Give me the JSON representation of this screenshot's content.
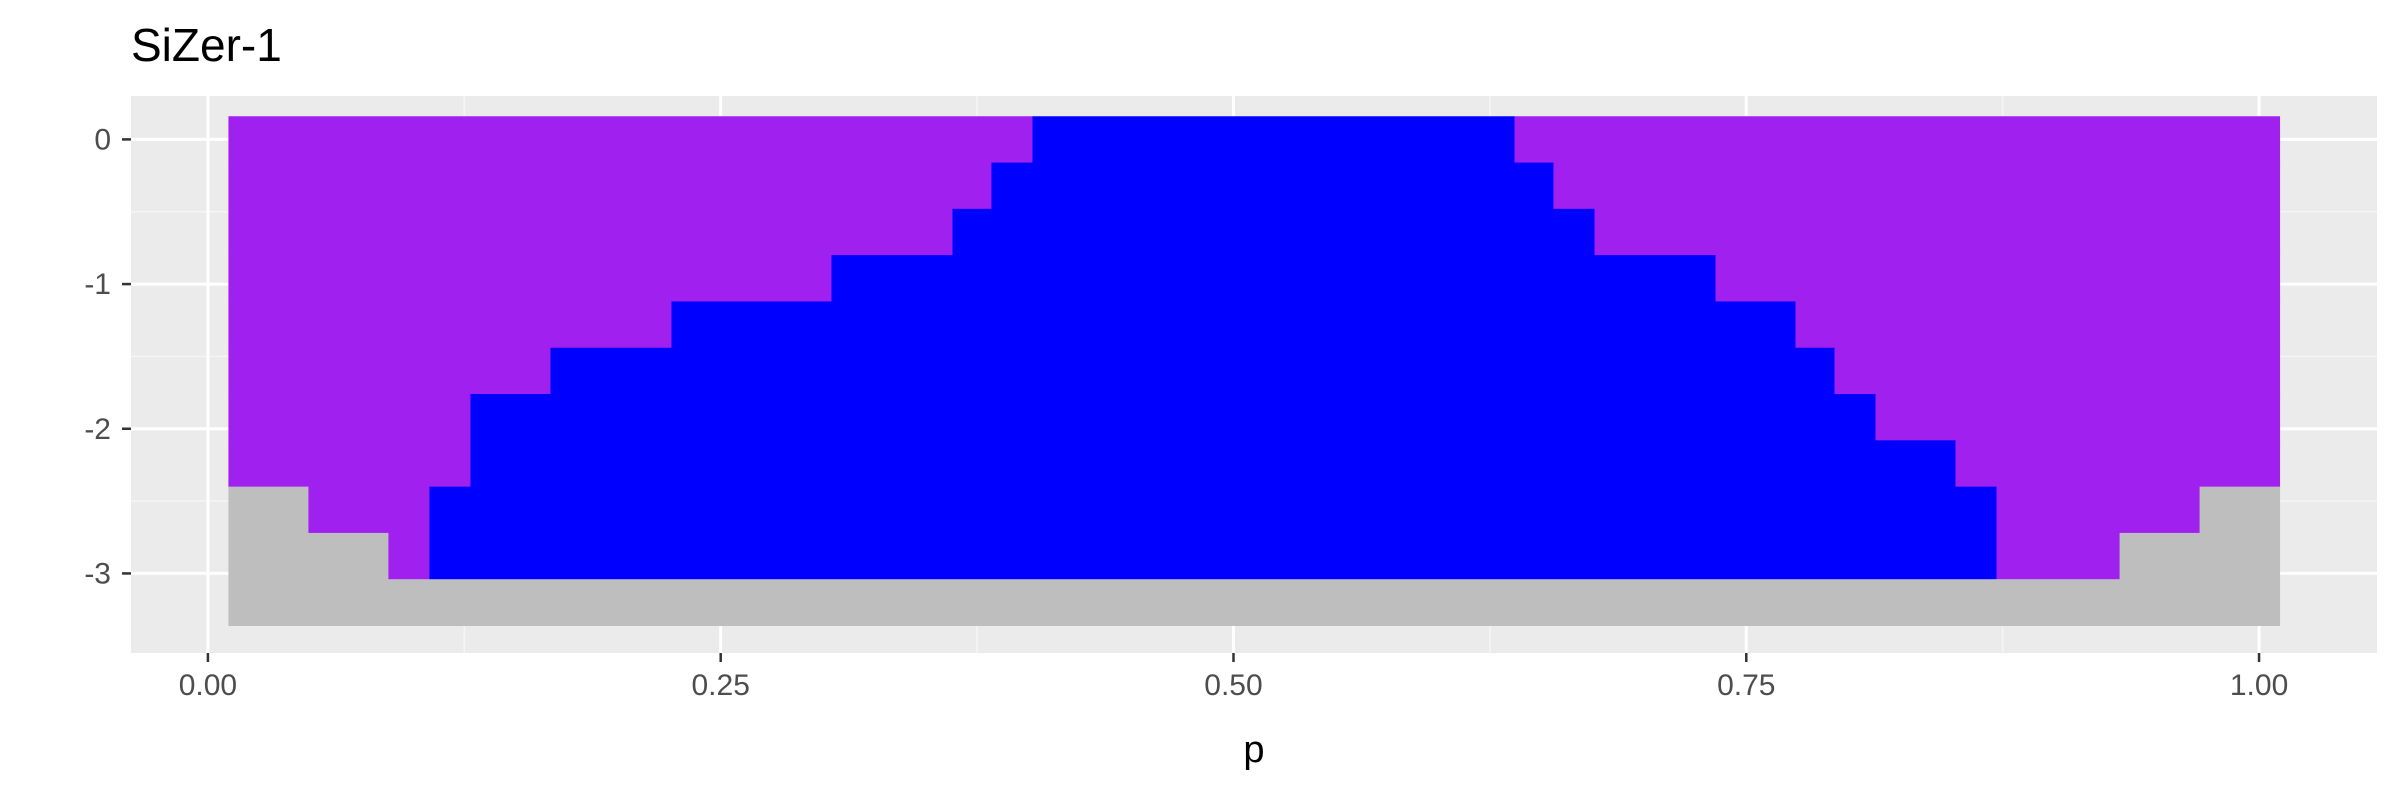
{
  "chart_data": {
    "type": "heatmap",
    "title": "SiZer-1",
    "xlabel": "p",
    "ylabel": "",
    "xlim": [
      -0.0375,
      1.0575
    ],
    "ylim": [
      -3.55,
      0.3
    ],
    "x_ticks": [
      0.0,
      0.25,
      0.5,
      0.75,
      1.0
    ],
    "x_tick_labels": [
      "0.00",
      "0.25",
      "0.50",
      "0.75",
      "1.00"
    ],
    "y_ticks": [
      0,
      -1,
      -2,
      -3
    ],
    "y_tick_labels": [
      "0",
      "-1",
      "-2",
      "-3"
    ],
    "grid": true,
    "legend": "none",
    "colors": {
      "increasing": "#0000ff",
      "not_significant": "#a020f0",
      "insufficient_data": "#bebebe",
      "panel_background": "#ebebeb",
      "grid_major": "#ffffff",
      "grid_minor": "#f5f5f5"
    },
    "x_extent": [
      0.01,
      1.01
    ],
    "bandwidth_rows": [
      {
        "y": 0.0,
        "y_bottom": -0.16,
        "y_top": 0.16,
        "grey_left": 0.01,
        "blue_start": 0.402,
        "blue_end": 0.637,
        "grey_right": 1.01
      },
      {
        "y": -0.32,
        "y_bottom": -0.48,
        "y_top": -0.16,
        "grey_left": 0.01,
        "blue_start": 0.382,
        "blue_end": 0.656,
        "grey_right": 1.01
      },
      {
        "y": -0.64,
        "y_bottom": -0.8,
        "y_top": -0.48,
        "grey_left": 0.01,
        "blue_start": 0.363,
        "blue_end": 0.676,
        "grey_right": 1.01
      },
      {
        "y": -0.96,
        "y_bottom": -1.12,
        "y_top": -0.8,
        "grey_left": 0.01,
        "blue_start": 0.304,
        "blue_end": 0.735,
        "grey_right": 1.01
      },
      {
        "y": -1.28,
        "y_bottom": -1.44,
        "y_top": -1.12,
        "grey_left": 0.01,
        "blue_start": 0.226,
        "blue_end": 0.774,
        "grey_right": 1.01
      },
      {
        "y": -1.6,
        "y_bottom": -1.76,
        "y_top": -1.44,
        "grey_left": 0.01,
        "blue_start": 0.167,
        "blue_end": 0.793,
        "grey_right": 1.01
      },
      {
        "y": -1.92,
        "y_bottom": -2.08,
        "y_top": -1.76,
        "grey_left": 0.01,
        "blue_start": 0.128,
        "blue_end": 0.813,
        "grey_right": 1.01
      },
      {
        "y": -2.24,
        "y_bottom": -2.4,
        "y_top": -2.08,
        "grey_left": 0.01,
        "blue_start": 0.128,
        "blue_end": 0.852,
        "grey_right": 1.01
      },
      {
        "y": -2.56,
        "y_bottom": -2.72,
        "y_top": -2.4,
        "grey_left": 0.049,
        "blue_start": 0.108,
        "blue_end": 0.872,
        "grey_right": 0.971
      },
      {
        "y": -2.88,
        "y_bottom": -3.04,
        "y_top": -2.72,
        "grey_left": 0.088,
        "blue_start": 0.108,
        "blue_end": 0.872,
        "grey_right": 0.932
      },
      {
        "y": -3.2,
        "y_bottom": -3.36,
        "y_top": -3.04,
        "grey_left": null,
        "blue_start": null,
        "blue_end": null,
        "grey_right": null
      }
    ]
  }
}
